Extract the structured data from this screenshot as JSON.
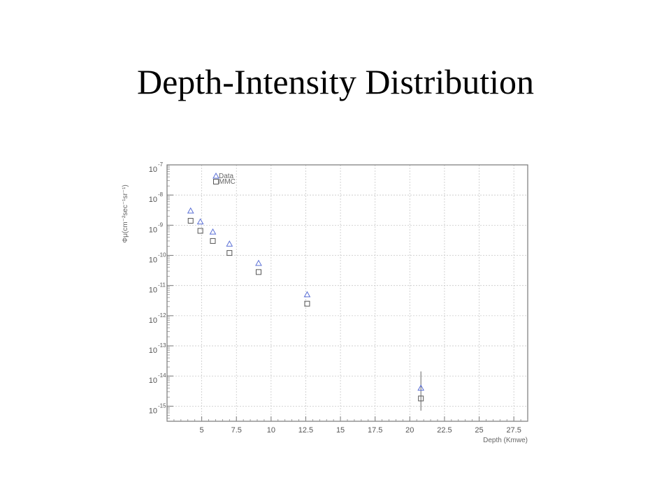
{
  "title": "Depth-Intensity Distribution",
  "chart_data": {
    "type": "scatter",
    "title": "",
    "xlabel": "Depth (Kmwe)",
    "ylabel": "Φμ(cm⁻²sec⁻¹sr⁻¹)",
    "xlim": [
      2.5,
      28.5
    ],
    "ylim_log10": [
      -15.5,
      -7
    ],
    "yscale": "log",
    "grid": true,
    "legend_position": "top-left",
    "x_ticks": [
      5,
      7.5,
      10,
      12.5,
      15,
      17.5,
      20,
      22.5,
      25,
      27.5
    ],
    "x_tick_labels": [
      "5",
      "7.5",
      "10",
      "12.5",
      "15",
      "17.5",
      "20",
      "22.5",
      "25",
      "27.5"
    ],
    "y_tick_exponents": [
      -7,
      -8,
      -9,
      -10,
      -11,
      -12,
      -13,
      -14,
      -15
    ],
    "y_tick_base": "10",
    "y_tick_exponent_labels": [
      "-7",
      "-8",
      "-9",
      "-10",
      "-11",
      "-12",
      "-13",
      "-14",
      "-15"
    ],
    "series": [
      {
        "name": "Data",
        "marker": "triangle",
        "color": "#5a6fd6",
        "x": [
          4.2,
          4.9,
          5.8,
          7.0,
          9.1,
          12.6,
          20.8
        ],
        "y": [
          3e-09,
          1.3e-09,
          6e-10,
          2.4e-10,
          5.5e-11,
          5e-12,
          4e-15
        ],
        "yerr_log10": [
          0,
          0,
          0,
          0,
          0,
          0,
          0.25
        ]
      },
      {
        "name": "MMC",
        "marker": "square",
        "color": "#555555",
        "x": [
          4.2,
          4.9,
          5.8,
          7.0,
          9.1,
          12.6,
          20.8
        ],
        "y": [
          1.4e-09,
          6.5e-10,
          3e-10,
          1.2e-10,
          2.8e-11,
          2.5e-12,
          1.8e-15
        ]
      }
    ]
  }
}
